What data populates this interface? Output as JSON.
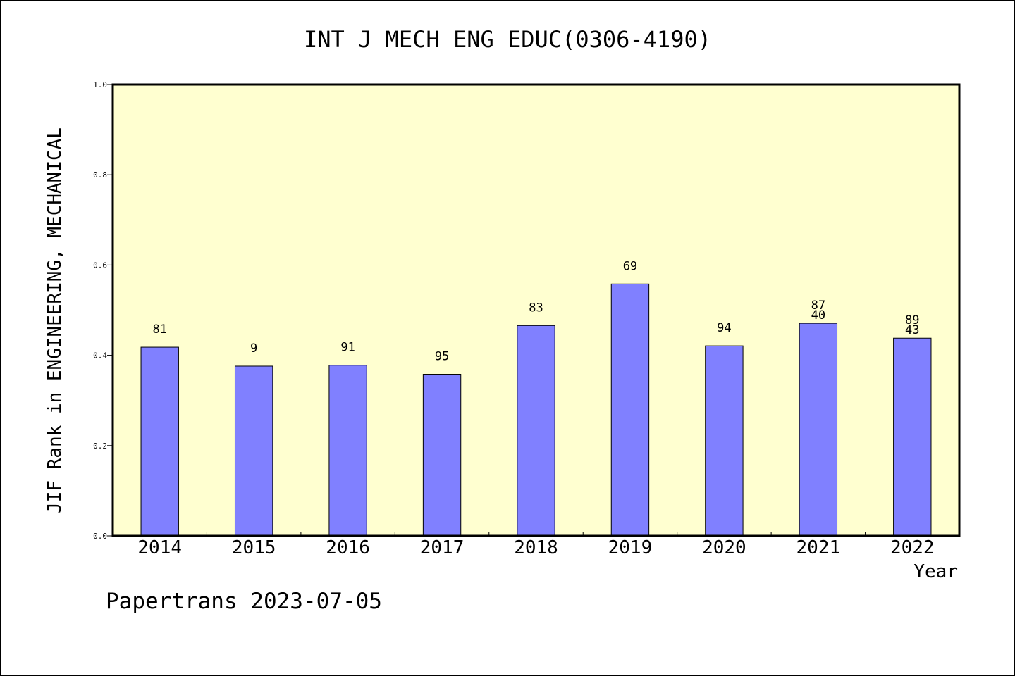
{
  "chart_data": {
    "type": "bar",
    "title": "INT J MECH ENG EDUC(0306-4190)",
    "ylabel": "JIF Rank in ENGINEERING, MECHANICAL",
    "xlabel": "Year",
    "ylim": [
      0,
      1.0
    ],
    "yticks": [
      "0.0",
      "0.2",
      "0.4",
      "0.6",
      "0.8",
      "1.0"
    ],
    "categories": [
      "2014",
      "2015",
      "2016",
      "2017",
      "2018",
      "2019",
      "2020",
      "2021",
      "2022"
    ],
    "values": [
      0.418,
      0.376,
      0.378,
      0.358,
      0.466,
      0.558,
      0.421,
      0.471,
      0.438
    ],
    "labels": [
      [
        "81"
      ],
      [
        "9"
      ],
      [
        "91"
      ],
      [
        "95"
      ],
      [
        "83"
      ],
      [
        "69"
      ],
      [
        "94"
      ],
      [
        "87",
        "40"
      ],
      [
        "89",
        "43"
      ]
    ],
    "grid": false,
    "legend": "none",
    "colors": {
      "plot_bg": "#ffffd0",
      "bar": "#8080ff",
      "bar_edge": "#000000"
    }
  },
  "footer": {
    "text": "Papertrans 2023-07-05"
  }
}
